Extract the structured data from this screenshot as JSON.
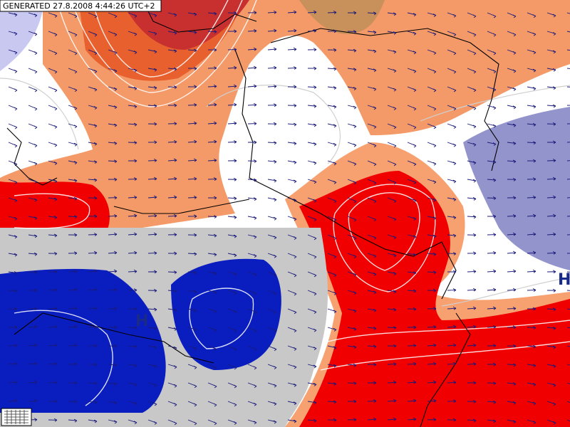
{
  "header": {
    "generated": "GENERATED 27.8.2008 4:44:26 UTC+2"
  },
  "pressure_labels": [
    {
      "label": "H"
    },
    {
      "label": "H"
    }
  ]
}
